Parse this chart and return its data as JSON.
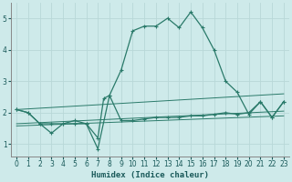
{
  "xlabel": "Humidex (Indice chaleur)",
  "bg_color": "#ceeaea",
  "grid_color": "#b8d8d8",
  "line_color": "#2a7a6a",
  "xlim": [
    -0.5,
    23.5
  ],
  "ylim": [
    0.6,
    5.5
  ],
  "xticks": [
    0,
    1,
    2,
    3,
    4,
    5,
    6,
    7,
    8,
    9,
    10,
    11,
    12,
    13,
    14,
    15,
    16,
    17,
    18,
    19,
    20,
    21,
    22,
    23
  ],
  "yticks": [
    1,
    2,
    3,
    4,
    5
  ],
  "series_main": [
    [
      0,
      2.1
    ],
    [
      1,
      2.0
    ],
    [
      2,
      1.65
    ],
    [
      3,
      1.65
    ],
    [
      4,
      1.65
    ],
    [
      5,
      1.75
    ],
    [
      6,
      1.65
    ],
    [
      7,
      0.85
    ],
    [
      8,
      2.55
    ],
    [
      9,
      3.35
    ],
    [
      10,
      4.6
    ],
    [
      11,
      4.75
    ],
    [
      12,
      4.75
    ],
    [
      13,
      5.0
    ],
    [
      14,
      4.7
    ],
    [
      15,
      5.2
    ],
    [
      16,
      4.7
    ],
    [
      17,
      4.0
    ],
    [
      18,
      3.0
    ],
    [
      19,
      2.65
    ],
    [
      20,
      1.95
    ],
    [
      21,
      2.35
    ],
    [
      22,
      1.85
    ],
    [
      23,
      2.35
    ]
  ],
  "series_lower": [
    [
      0,
      2.1
    ],
    [
      1,
      2.0
    ],
    [
      2,
      1.65
    ],
    [
      3,
      1.35
    ],
    [
      4,
      1.65
    ],
    [
      5,
      1.65
    ],
    [
      6,
      1.65
    ],
    [
      7,
      1.2
    ],
    [
      7.5,
      2.45
    ],
    [
      8,
      2.55
    ],
    [
      9,
      1.75
    ],
    [
      10,
      1.75
    ],
    [
      11,
      1.8
    ],
    [
      12,
      1.85
    ],
    [
      13,
      1.85
    ],
    [
      14,
      1.85
    ],
    [
      15,
      1.9
    ],
    [
      16,
      1.9
    ],
    [
      17,
      1.95
    ],
    [
      18,
      2.0
    ],
    [
      19,
      1.95
    ],
    [
      20,
      2.0
    ],
    [
      21,
      2.35
    ],
    [
      22,
      1.85
    ],
    [
      23,
      2.35
    ]
  ],
  "line1": [
    [
      0,
      2.1
    ],
    [
      23,
      2.6
    ]
  ],
  "line2": [
    [
      0,
      1.65
    ],
    [
      23,
      2.05
    ]
  ],
  "line3": [
    [
      0,
      1.58
    ],
    [
      23,
      1.9
    ]
  ]
}
